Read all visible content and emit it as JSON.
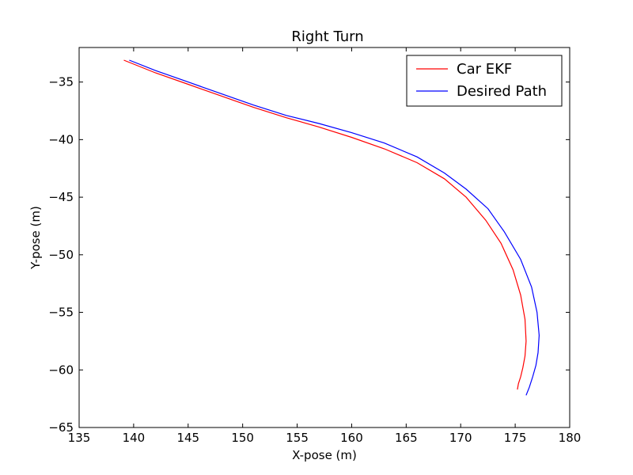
{
  "chart_data": {
    "type": "line",
    "title": "Right Turn",
    "xlabel": "X-pose (m)",
    "ylabel": "Y-pose (m)",
    "xlim": [
      135,
      180
    ],
    "ylim": [
      -65,
      -32
    ],
    "xticks": [
      135,
      140,
      145,
      150,
      155,
      160,
      165,
      170,
      175,
      180
    ],
    "yticks": [
      -35,
      -40,
      -45,
      -50,
      -55,
      -60,
      -65
    ],
    "xtick_labels": [
      "135",
      "140",
      "145",
      "150",
      "155",
      "160",
      "165",
      "170",
      "175",
      "180"
    ],
    "ytick_labels": [
      "−35",
      "−40",
      "−45",
      "−50",
      "−55",
      "−60",
      "−65"
    ],
    "grid": false,
    "legend_position": "top-right",
    "series": [
      {
        "name": "Car EKF",
        "color": "#ff0000",
        "x": [
          139.1,
          142.0,
          145.0,
          148.0,
          151.0,
          154.0,
          157.0,
          160.0,
          163.0,
          166.0,
          168.5,
          170.5,
          172.3,
          173.7,
          174.8,
          175.5,
          175.9,
          176.0,
          175.9,
          175.7,
          175.5,
          175.3,
          175.2
        ],
        "y": [
          -33.1,
          -34.2,
          -35.2,
          -36.2,
          -37.2,
          -38.1,
          -38.9,
          -39.8,
          -40.8,
          -42.0,
          -43.4,
          -45.0,
          -47.0,
          -49.0,
          -51.3,
          -53.5,
          -55.6,
          -57.5,
          -58.8,
          -59.8,
          -60.6,
          -61.2,
          -61.7
        ]
      },
      {
        "name": "Desired Path",
        "color": "#0000ff",
        "x": [
          139.6,
          142.0,
          145.0,
          148.0,
          151.0,
          154.0,
          157.0,
          160.0,
          163.0,
          166.0,
          168.5,
          170.5,
          172.5,
          174.0,
          175.5,
          176.5,
          177.0,
          177.2,
          177.1,
          176.9,
          176.6,
          176.3,
          176.0
        ],
        "y": [
          -33.1,
          -34.0,
          -35.0,
          -36.0,
          -37.0,
          -37.9,
          -38.6,
          -39.4,
          -40.3,
          -41.5,
          -42.9,
          -44.3,
          -46.0,
          -48.0,
          -50.4,
          -52.8,
          -55.0,
          -57.0,
          -58.5,
          -59.6,
          -60.6,
          -61.5,
          -62.2
        ]
      }
    ]
  }
}
